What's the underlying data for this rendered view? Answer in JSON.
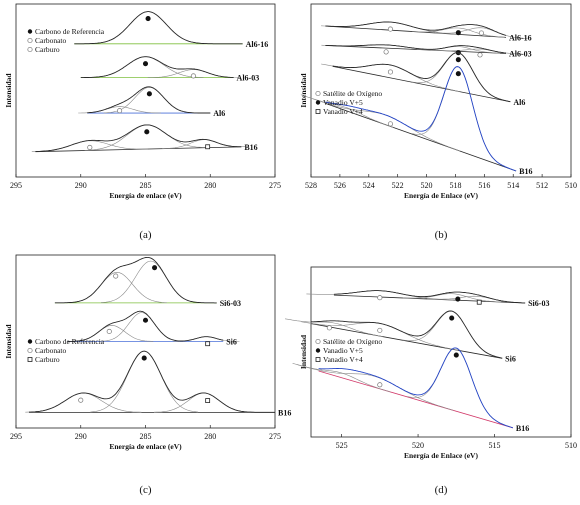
{
  "colors": {
    "curve": "#2a2a2a",
    "component": "#8a8a8a",
    "baseline_green": "#7fbf3f",
    "baseline_blue": "#4a6fd8",
    "curve_blue": "#2546c8",
    "baseline_red": "#d23a6a",
    "axis": "#222222"
  },
  "chart_data": [
    {
      "type": "line",
      "panel_label": "(a)",
      "xlabel": "Energía de enlace (eV)",
      "ylabel": "Intensidad",
      "xlim": [
        295,
        275
      ],
      "x_reversed": true,
      "xticks": [
        295,
        290,
        285,
        280,
        275
      ],
      "legend": [
        {
          "label": "Carbono de Referencia",
          "marker": "filled-circle"
        },
        {
          "label": "Carbonato",
          "marker": "open-circle"
        },
        {
          "label": "Carburo",
          "marker": "open-circle"
        }
      ],
      "legend_position": "top-left",
      "series": [
        {
          "name": "Al6-16",
          "baseline_color": "#7fbf3f",
          "curve_color": "#2a2a2a",
          "x_range": [
            290.5,
            277.5
          ],
          "base_level": 0.79,
          "peaks": [
            {
              "x": 284.8,
              "h": 0.2,
              "w": 1.4
            }
          ],
          "markers": [
            {
              "x": 284.8,
              "type": "filled"
            }
          ]
        },
        {
          "name": "Al6-03",
          "baseline_color": "#7fbf3f",
          "curve_color": "#2a2a2a",
          "x_range": [
            290.0,
            278.2
          ],
          "base_level": 0.58,
          "peaks": [
            {
              "x": 285.0,
              "h": 0.13,
              "w": 1.4
            },
            {
              "x": 281.3,
              "h": 0.05,
              "w": 1.1
            }
          ],
          "markers": [
            {
              "x": 285.0,
              "type": "filled"
            },
            {
              "x": 281.3,
              "type": "open"
            }
          ]
        },
        {
          "name": "Al6",
          "baseline_color": "#4a6fd8",
          "curve_color": "#2a2a2a",
          "x_range": [
            289.5,
            280.0
          ],
          "base_level": 0.36,
          "peaks": [
            {
              "x": 284.7,
              "h": 0.16,
              "w": 1.1
            },
            {
              "x": 287.0,
              "h": 0.04,
              "w": 1.0
            }
          ],
          "markers": [
            {
              "x": 284.7,
              "type": "filled"
            },
            {
              "x": 287.0,
              "type": "open"
            }
          ]
        },
        {
          "name": "B16",
          "baseline_color": "#2a2a2a",
          "curve_color": "#2a2a2a",
          "x_range": [
            293.5,
            277.6
          ],
          "base_level": 0.12,
          "base_slope": 0.03,
          "peaks": [
            {
              "x": 284.9,
              "h": 0.15,
              "w": 1.5
            },
            {
              "x": 289.3,
              "h": 0.06,
              "w": 1.4
            },
            {
              "x": 280.5,
              "h": 0.05,
              "w": 1.0
            }
          ],
          "markers": [
            {
              "x": 284.9,
              "type": "filled"
            },
            {
              "x": 289.3,
              "type": "open"
            },
            {
              "x": 280.2,
              "type": "square"
            }
          ]
        }
      ]
    },
    {
      "type": "line",
      "panel_label": "(b)",
      "xlabel": "Energía de Enlace (eV)",
      "ylabel": "Intensidad",
      "xlim": [
        528,
        510
      ],
      "x_reversed": true,
      "xticks": [
        528,
        526,
        524,
        522,
        520,
        518,
        516,
        514,
        512,
        510
      ],
      "legend": [
        {
          "label": "Satélite de Oxígeno",
          "marker": "open-circle"
        },
        {
          "label": "Vanadio V+5",
          "marker": "filled-circle"
        },
        {
          "label": "Vanadio V+4",
          "marker": "open-square"
        }
      ],
      "legend_position": "middle-left",
      "series": [
        {
          "name": "Al6-16",
          "baseline_color": "#2a2a2a",
          "curve_color": "#2a2a2a",
          "x_range": [
            527.0,
            514.5
          ],
          "base_level": 0.9,
          "base_slope": -0.07,
          "peaks": [
            {
              "x": 522.5,
              "h": 0.05,
              "w": 1.5
            },
            {
              "x": 517.8,
              "h": 0.04,
              "w": 1.0
            },
            {
              "x": 516.2,
              "h": 0.05,
              "w": 1.0
            }
          ],
          "markers": [
            {
              "x": 522.5,
              "type": "open"
            },
            {
              "x": 517.8,
              "type": "filled"
            },
            {
              "x": 516.2,
              "type": "open"
            }
          ]
        },
        {
          "name": "Al6-03",
          "baseline_color": "#2a2a2a",
          "curve_color": "#2a2a2a",
          "x_range": [
            527.0,
            514.5
          ],
          "base_level": 0.78,
          "base_slope": -0.05,
          "peaks": [
            {
              "x": 522.8,
              "h": 0.02,
              "w": 1.4
            },
            {
              "x": 517.8,
              "h": 0.03,
              "w": 0.9
            },
            {
              "x": 516.3,
              "h": 0.02,
              "w": 0.9
            }
          ],
          "markers": [
            {
              "x": 522.8,
              "type": "open"
            },
            {
              "x": 517.8,
              "type": "filled"
            },
            {
              "x": 516.3,
              "type": "open"
            }
          ]
        },
        {
          "name": "Al6",
          "baseline_color": "#2a2a2a",
          "curve_color": "#2a2a2a",
          "x_range": [
            526.5,
            514.2
          ],
          "base_level": 0.65,
          "base_slope": -0.22,
          "peaks": [
            {
              "x": 522.5,
              "h": 0.08,
              "w": 1.5
            },
            {
              "x": 517.8,
              "h": 0.24,
              "w": 1.0
            }
          ],
          "markers": [
            {
              "x": 522.5,
              "type": "open"
            },
            {
              "x": 517.8,
              "type": "filled"
            }
          ]
        },
        {
          "name": "B16",
          "baseline_color": "#2a2a2a",
          "curve_color": "#2546c8",
          "x_range": [
            527.0,
            513.8
          ],
          "base_level": 0.42,
          "base_slope": -0.42,
          "peaks": [
            {
              "x": 522.8,
              "h": 0.06,
              "w": 1.6
            },
            {
              "x": 517.8,
              "h": 0.52,
              "w": 1.0
            },
            {
              "x": 525.5,
              "h": 0.02,
              "w": 1.0
            }
          ],
          "markers": [
            {
              "x": 522.5,
              "type": "open"
            },
            {
              "x": 517.8,
              "type": "filled"
            }
          ]
        }
      ]
    },
    {
      "type": "line",
      "panel_label": "(c)",
      "xlabel": "Energía de enlace (eV)",
      "ylabel": "Intensidad",
      "xlim": [
        295,
        275
      ],
      "x_reversed": true,
      "xticks": [
        295,
        290,
        285,
        280,
        275
      ],
      "legend": [
        {
          "label": "Carbono de Referencia",
          "marker": "filled-circle"
        },
        {
          "label": "Carbonato",
          "marker": "open-circle"
        },
        {
          "label": "Carburo",
          "marker": "open-square"
        }
      ],
      "legend_position": "middle-left",
      "series": [
        {
          "name": "Si6-03",
          "baseline_color": "#7fbf3f",
          "curve_color": "#2a2a2a",
          "x_range": [
            292.0,
            279.5
          ],
          "base_level": 0.74,
          "peaks": [
            {
              "x": 284.6,
              "h": 0.26,
              "w": 1.2
            },
            {
              "x": 287.2,
              "h": 0.19,
              "w": 1.2
            }
          ],
          "markers": [
            {
              "x": 284.3,
              "type": "filled"
            },
            {
              "x": 287.3,
              "type": "open"
            }
          ]
        },
        {
          "name": "Si6",
          "baseline_color": "#4a6fd8",
          "curve_color": "#2a2a2a",
          "x_range": [
            291.0,
            279.0
          ],
          "base_level": 0.5,
          "peaks": [
            {
              "x": 285.3,
              "h": 0.18,
              "w": 1.0
            },
            {
              "x": 287.6,
              "h": 0.1,
              "w": 1.0
            },
            {
              "x": 280.3,
              "h": 0.03,
              "w": 0.8
            }
          ],
          "markers": [
            {
              "x": 285.0,
              "type": "filled"
            },
            {
              "x": 287.8,
              "type": "open"
            },
            {
              "x": 280.2,
              "type": "square"
            }
          ]
        },
        {
          "name": "B16",
          "baseline_color": "#2a2a2a",
          "curve_color": "#2a2a2a",
          "x_range": [
            294.0,
            275.0
          ],
          "base_level": 0.06,
          "peaks": [
            {
              "x": 285.1,
              "h": 0.38,
              "w": 1.3
            },
            {
              "x": 289.8,
              "h": 0.12,
              "w": 1.4
            },
            {
              "x": 280.5,
              "h": 0.12,
              "w": 1.2
            }
          ],
          "markers": [
            {
              "x": 285.1,
              "type": "filled"
            },
            {
              "x": 290.0,
              "type": "open"
            },
            {
              "x": 280.2,
              "type": "square"
            }
          ]
        }
      ]
    },
    {
      "type": "line",
      "panel_label": "(d)",
      "xlabel": "Energía de Enlace (eV)",
      "ylabel": "Intensidad",
      "xlim": [
        527,
        510
      ],
      "x_reversed": true,
      "xticks": [
        525,
        520,
        515,
        510
      ],
      "legend": [
        {
          "label": "Satélite de Oxígeno",
          "marker": "open-circle"
        },
        {
          "label": "Vanadio V+5",
          "marker": "filled-circle"
        },
        {
          "label": "Vanadio V+4",
          "marker": "open-square"
        }
      ],
      "legend_position": "middle-left",
      "series": [
        {
          "name": "Si6-03",
          "baseline_color": "#2a2a2a",
          "curve_color": "#2a2a2a",
          "x_range": [
            525.5,
            513.0
          ],
          "base_level": 0.86,
          "base_slope": -0.05,
          "peaks": [
            {
              "x": 522.5,
              "h": 0.04,
              "w": 1.5
            },
            {
              "x": 517.8,
              "h": 0.04,
              "w": 1.0
            },
            {
              "x": 516.2,
              "h": 0.03,
              "w": 1.0
            }
          ],
          "markers": [
            {
              "x": 522.5,
              "type": "open"
            },
            {
              "x": 517.4,
              "type": "filled"
            },
            {
              "x": 516.0,
              "type": "square"
            }
          ]
        },
        {
          "name": "Si6",
          "baseline_color": "#2a2a2a",
          "curve_color": "#2a2a2a",
          "x_range": [
            527.0,
            514.5
          ],
          "base_level": 0.68,
          "base_slope": -0.22,
          "peaks": [
            {
              "x": 522.5,
              "h": 0.08,
              "w": 1.6
            },
            {
              "x": 517.8,
              "h": 0.24,
              "w": 1.0
            },
            {
              "x": 525.5,
              "h": 0.03,
              "w": 1.0
            }
          ],
          "markers": [
            {
              "x": 522.5,
              "type": "open"
            },
            {
              "x": 517.8,
              "type": "filled"
            },
            {
              "x": 525.8,
              "type": "open"
            }
          ]
        },
        {
          "name": "B16",
          "baseline_color": "#d23a6a",
          "curve_color": "#2546c8",
          "x_range": [
            526.5,
            513.8
          ],
          "base_level": 0.38,
          "base_slope": -0.36,
          "peaks": [
            {
              "x": 522.8,
              "h": 0.07,
              "w": 1.6
            },
            {
              "x": 517.5,
              "h": 0.4,
              "w": 1.0
            },
            {
              "x": 525.0,
              "h": 0.03,
              "w": 1.0
            }
          ],
          "markers": [
            {
              "x": 522.5,
              "type": "open"
            },
            {
              "x": 517.5,
              "type": "filled"
            }
          ]
        }
      ]
    }
  ]
}
